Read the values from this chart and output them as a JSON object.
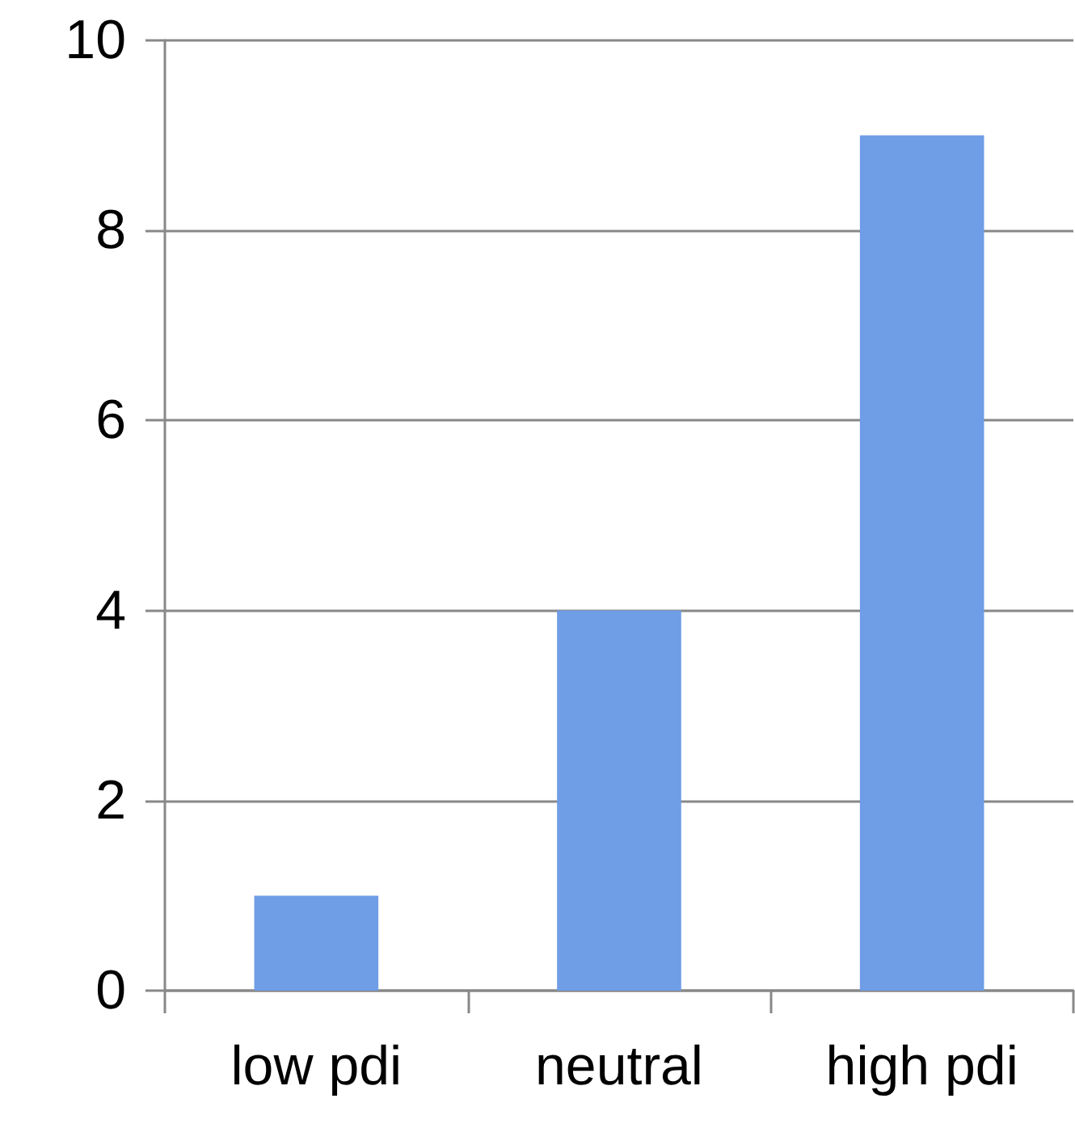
{
  "chart_data": {
    "type": "bar",
    "categories": [
      "low pdi",
      "neutral",
      "high pdi"
    ],
    "values": [
      1,
      4,
      9
    ],
    "color": "#6f9de6",
    "ylim": [
      0,
      10
    ],
    "yticks": [
      0,
      2,
      4,
      6,
      8,
      10
    ],
    "grid": "y"
  }
}
